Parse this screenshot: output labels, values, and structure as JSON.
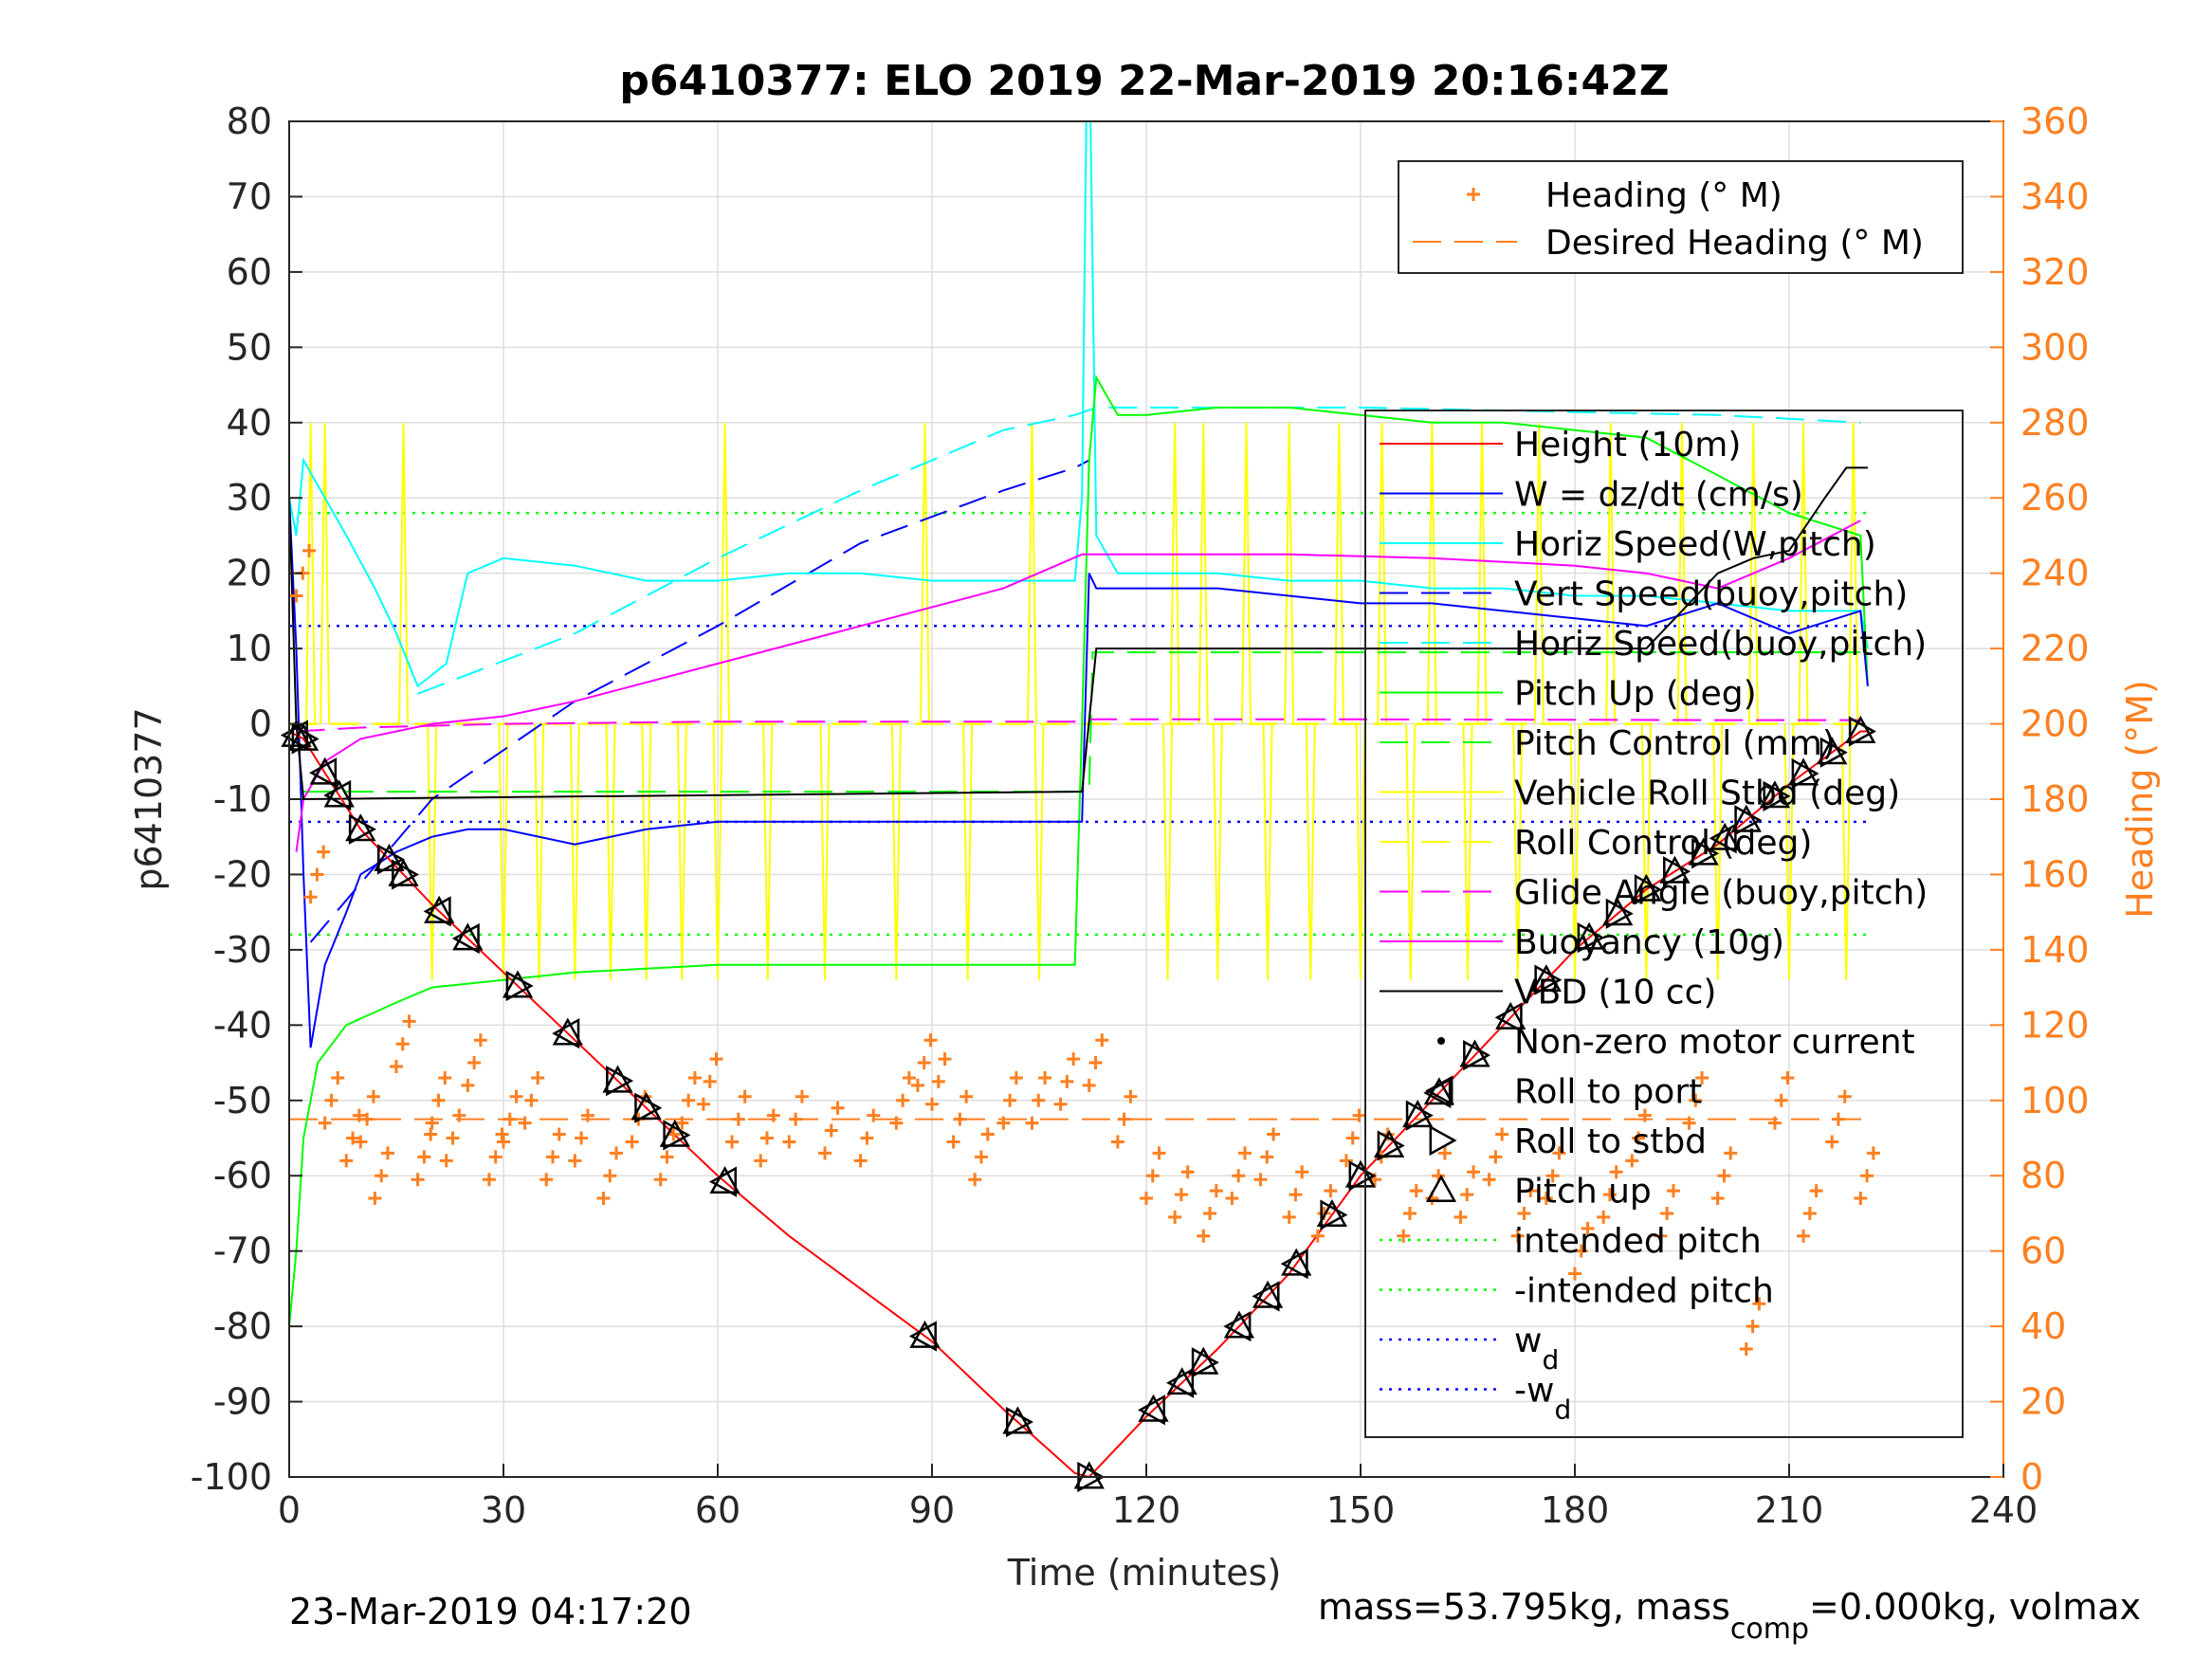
{
  "chart_data": {
    "type": "line",
    "title": "p6410377: ELO 2019 22-Mar-2019 20:16:42Z",
    "xlabel": "Time (minutes)",
    "ylabel_left": "p6410377",
    "ylabel_right": "Heading (°M)",
    "xlim": [
      0,
      240
    ],
    "ylim_left": [
      -100,
      80
    ],
    "ylim_right": [
      0,
      360
    ],
    "xticks": [
      "0",
      "30",
      "60",
      "90",
      "120",
      "150",
      "180",
      "210",
      "240"
    ],
    "yticks_left": [
      "80",
      "70",
      "60",
      "50",
      "40",
      "30",
      "20",
      "10",
      "0",
      "-10",
      "-20",
      "-30",
      "-40",
      "-50",
      "-60",
      "-70",
      "-80",
      "-90",
      "-100"
    ],
    "yticks_right": [
      "360",
      "340",
      "320",
      "300",
      "280",
      "260",
      "240",
      "220",
      "200",
      "180",
      "160",
      "140",
      "120",
      "100",
      "80",
      "60",
      "40",
      "20",
      "0"
    ],
    "grid": true,
    "footer_left": "23-Mar-2019 04:17:20",
    "footer_right": {
      "a": "mass=53.795kg, mass",
      "sub": "comp",
      "b": "=0.000kg, volmax"
    },
    "colors": {
      "height": "#ff0000",
      "w": "#0000ff",
      "cyan": "#00ffff",
      "green": "#00ff00",
      "yellow": "#ffff00",
      "magenta": "#ff00ff",
      "black": "#000000",
      "orange": "#ff7f1f"
    },
    "heading_legend": [
      {
        "label": "Heading (° M)",
        "style": "plus"
      },
      {
        "label": "Desired Heading (° M)",
        "style": "dash"
      }
    ],
    "legend": [
      {
        "label": "Height (10m)",
        "style": "solid",
        "color": "#ff0000"
      },
      {
        "label": "W = dz/dt (cm/s)",
        "style": "solid",
        "color": "#0000ff"
      },
      {
        "label": "Horiz Speed(W,pitch)",
        "style": "solid",
        "color": "#00ffff"
      },
      {
        "label": "Vert Speed(buoy,pitch)",
        "style": "dash",
        "color": "#0000ff"
      },
      {
        "label": "Horiz Speed(buoy,pitch)",
        "style": "dash",
        "color": "#00ffff"
      },
      {
        "label": "Pitch Up (deg)",
        "style": "solid",
        "color": "#00ff00"
      },
      {
        "label": "Pitch Control (mm)",
        "style": "dash",
        "color": "#00ff00"
      },
      {
        "label": "Vehicle Roll Stbd (deg)",
        "style": "solid",
        "color": "#ffff00"
      },
      {
        "label": "Roll Control (deg)",
        "style": "dash",
        "color": "#ffff00"
      },
      {
        "label": "Glide Angle (buoy,pitch)",
        "style": "dash",
        "color": "#ff00ff"
      },
      {
        "label": "Buoyancy (10g)",
        "style": "solid",
        "color": "#ff00ff"
      },
      {
        "label": "VBD (10 cc)",
        "style": "solid",
        "color": "#000000"
      },
      {
        "label": "Non-zero motor current",
        "style": "dot",
        "color": "#000000"
      },
      {
        "label": "Roll to port",
        "style": "ltri",
        "color": "#000000"
      },
      {
        "label": "Roll to stbd",
        "style": "rtri",
        "color": "#000000"
      },
      {
        "label": "Pitch up",
        "style": "utri",
        "color": "#000000"
      },
      {
        "label": "intended pitch",
        "style": "dotted",
        "color": "#00ff00"
      },
      {
        "label": "-intended pitch",
        "style": "dotted",
        "color": "#00ff00"
      },
      {
        "label": "w",
        "sub": "d",
        "style": "dotted",
        "color": "#0000ff"
      },
      {
        "label": "-w",
        "sub": "d",
        "style": "dotted",
        "color": "#0000ff"
      }
    ],
    "series": {
      "height": {
        "x": [
          0,
          1,
          2,
          3,
          10,
          20,
          30,
          40,
          50,
          60,
          70,
          80,
          90,
          100,
          110,
          112,
          120,
          130,
          140,
          150,
          160,
          170,
          180,
          190,
          200,
          210,
          220,
          221
        ],
        "y": [
          -1,
          -1.5,
          -2,
          -3.5,
          -14,
          -24,
          -33,
          -42,
          -51,
          -60,
          -68,
          -75,
          -82,
          -91,
          -99.5,
          -100,
          -92,
          -83,
          -73,
          -60,
          -50,
          -40,
          -30,
          -22,
          -16,
          -8,
          -1,
          -1
        ]
      },
      "w": {
        "x": [
          0,
          1,
          2,
          3,
          5,
          8,
          10,
          15,
          20,
          25,
          30,
          40,
          50,
          60,
          70,
          80,
          90,
          100,
          111,
          112,
          113,
          120,
          130,
          140,
          150,
          160,
          170,
          180,
          190,
          200,
          210,
          220,
          221
        ],
        "y": [
          30,
          10,
          -20,
          -43,
          -32,
          -25,
          -20,
          -17,
          -15,
          -14,
          -14,
          -16,
          -14,
          -13,
          -13,
          -13,
          -13,
          -13,
          -13,
          20,
          18,
          18,
          18,
          17,
          16,
          16,
          15,
          14,
          13,
          16,
          12,
          15,
          5
        ]
      },
      "horiz_w": {
        "x": [
          0,
          1,
          2,
          5,
          8,
          12,
          15,
          18,
          22,
          25,
          30,
          40,
          50,
          60,
          70,
          80,
          90,
          100,
          110,
          111,
          111.6,
          112.2,
          113,
          116,
          120,
          130,
          140,
          150,
          160,
          170,
          180,
          190,
          200,
          210,
          220,
          221
        ],
        "y": [
          30,
          25,
          35,
          30,
          25,
          18,
          12,
          5,
          8,
          20,
          22,
          21,
          19,
          19,
          20,
          20,
          19,
          19,
          19,
          30,
          80,
          80,
          25,
          20,
          20,
          20,
          19,
          19,
          18,
          18,
          17,
          17,
          16,
          15,
          15,
          10
        ]
      },
      "vert_buoy": {
        "x": [
          3,
          20,
          40,
          60,
          80,
          100,
          110,
          112
        ],
        "y": [
          -29,
          -10,
          3,
          13,
          24,
          31,
          34,
          35
        ]
      },
      "horiz_buoy": {
        "x": [
          18,
          40,
          60,
          80,
          100,
          110,
          113,
          150,
          200,
          220
        ],
        "y": [
          4,
          12,
          22,
          31,
          39,
          41,
          42,
          42,
          41,
          40
        ]
      },
      "pitch_up": {
        "x": [
          0,
          1,
          2,
          4,
          8,
          15,
          20,
          30,
          40,
          50,
          60,
          70,
          80,
          90,
          100,
          110,
          111,
          112,
          113,
          116,
          120,
          130,
          140,
          150,
          160,
          170,
          180,
          190,
          200,
          210,
          220,
          221
        ],
        "y": [
          -80,
          -70,
          -55,
          -45,
          -40,
          -37,
          -35,
          -34,
          -33,
          -32.5,
          -32,
          -32,
          -32,
          -32,
          -32,
          -32,
          0,
          35,
          46,
          41,
          41,
          42,
          42,
          41,
          40,
          40,
          39,
          38,
          33,
          28,
          25,
          5
        ]
      },
      "pitch_control": {
        "x": [
          2,
          112,
          112.5,
          220
        ],
        "y": [
          -9,
          -9,
          9.5,
          9.5
        ]
      },
      "roll_control": {
        "x": [
          0,
          221
        ],
        "y": [
          0,
          0
        ]
      },
      "roll_spikes_down": [
        20,
        30,
        35,
        40,
        45,
        50,
        55,
        60,
        67,
        75,
        85,
        95,
        105,
        123,
        130,
        137,
        143,
        150,
        157,
        165,
        172,
        180,
        190,
        200,
        210,
        218
      ],
      "roll_spikes_up": [
        3,
        5,
        16,
        61,
        89,
        104,
        124,
        128,
        134,
        140,
        147,
        153,
        160,
        167,
        175,
        185,
        195,
        205,
        212,
        219
      ],
      "buoyancy": {
        "x": [
          1,
          2,
          5,
          10,
          20,
          30,
          40,
          60,
          80,
          100,
          111,
          120,
          140,
          160,
          180,
          190,
          200,
          210,
          220
        ],
        "y": [
          -17,
          -10,
          -5,
          -2,
          0,
          1,
          3,
          8,
          13,
          18,
          22.5,
          22.5,
          22.5,
          22,
          21,
          20,
          18,
          22,
          27
        ]
      },
      "glide_angle": {
        "x": [
          1,
          10,
          30,
          60,
          100,
          110,
          112,
          150,
          200,
          220
        ],
        "y": [
          -1,
          -0.5,
          0,
          0.3,
          0.3,
          0.3,
          0.6,
          0.6,
          0.5,
          0.5
        ]
      },
      "vbd": {
        "x": [
          0,
          1,
          2,
          110,
          111,
          113,
          150,
          190,
          195,
          200,
          205,
          210,
          215,
          218,
          221
        ],
        "y": [
          30,
          0,
          -10,
          -9,
          -9,
          10,
          10,
          10,
          15,
          20,
          22,
          23,
          30,
          34,
          34
        ]
      },
      "intended_pitch": 28,
      "w_d": 13,
      "desired_heading": 95,
      "heading": {
        "x": [
          1,
          3,
          5,
          8,
          10,
          12,
          15,
          18,
          20,
          22,
          25,
          28,
          30,
          33,
          36,
          40,
          44,
          48,
          52,
          55,
          58,
          62,
          66,
          70,
          75,
          80,
          85,
          88,
          90,
          93,
          96,
          100,
          104,
          108,
          112,
          116,
          120,
          124,
          128,
          132,
          136,
          140,
          144,
          148,
          152,
          156,
          160,
          164,
          168,
          172,
          176,
          180,
          184,
          188,
          192,
          196,
          200,
          204,
          208,
          212,
          216,
          220
        ],
        "y": [
          240,
          160,
          100,
          90,
          95,
          80,
          115,
          85,
          100,
          90,
          110,
          85,
          95,
          100,
          85,
          90,
          80,
          95,
          85,
          100,
          105,
          95,
          90,
          95,
          92,
          90,
          100,
          110,
          105,
          95,
          85,
          100,
          100,
          105,
          110,
          95,
          80,
          75,
          70,
          80,
          85,
          75,
          70,
          90,
          85,
          70,
          80,
          75,
          85,
          70,
          80,
          60,
          75,
          90,
          70,
          100,
          80,
          40,
          100,
          70,
          95,
          80
        ]
      }
    }
  }
}
